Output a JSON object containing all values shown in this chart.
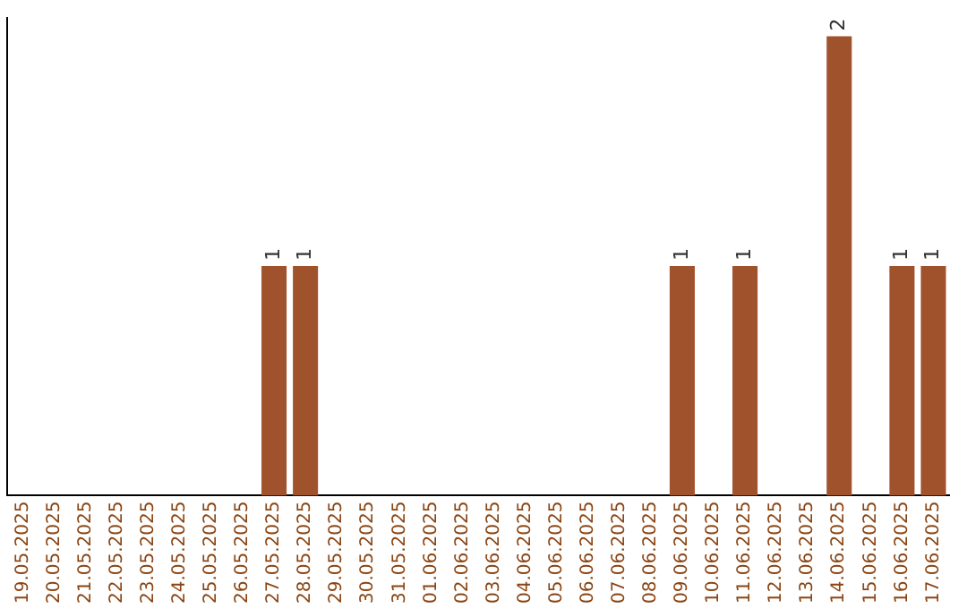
{
  "chart_data": {
    "type": "bar",
    "categories": [
      "19.05.2025",
      "20.05.2025",
      "21.05.2025",
      "22.05.2025",
      "23.05.2025",
      "24.05.2025",
      "25.05.2025",
      "26.05.2025",
      "27.05.2025",
      "28.05.2025",
      "29.05.2025",
      "30.05.2025",
      "31.05.2025",
      "01.06.2025",
      "02.06.2025",
      "03.06.2025",
      "04.06.2025",
      "05.06.2025",
      "06.06.2025",
      "07.06.2025",
      "08.06.2025",
      "09.06.2025",
      "10.06.2025",
      "11.06.2025",
      "12.06.2025",
      "13.06.2025",
      "14.06.2025",
      "15.06.2025",
      "16.06.2025",
      "17.06.2025"
    ],
    "values": [
      0,
      0,
      0,
      0,
      0,
      0,
      0,
      0,
      1,
      1,
      0,
      0,
      0,
      0,
      0,
      0,
      0,
      0,
      0,
      0,
      0,
      1,
      0,
      1,
      0,
      0,
      2,
      0,
      1,
      1
    ],
    "color": "#a0522d",
    "ylim": [
      0,
      2.08
    ],
    "tick_labels": "x",
    "grid": false,
    "legend": false,
    "value_labels": [
      null,
      null,
      null,
      null,
      null,
      null,
      null,
      null,
      "1",
      "1",
      null,
      null,
      null,
      null,
      null,
      null,
      null,
      null,
      null,
      null,
      null,
      "1",
      null,
      "1",
      null,
      null,
      "2",
      null,
      "1",
      "1"
    ]
  }
}
